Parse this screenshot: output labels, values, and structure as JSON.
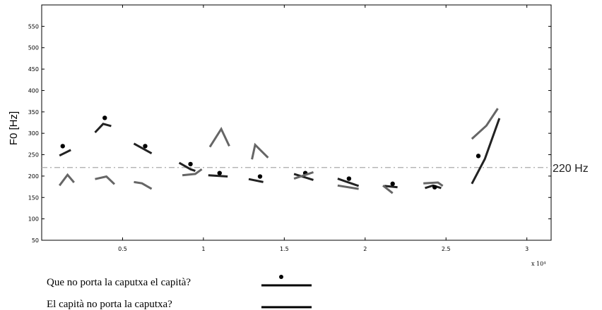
{
  "chart_data": {
    "type": "line",
    "title": "",
    "xlabel": "",
    "ylabel": "F0 [Hz]",
    "x_exponent_label": "x 10⁴",
    "xlim": [
      0,
      3.15
    ],
    "ylim": [
      50,
      600
    ],
    "xticks": [
      0.5,
      1,
      1.5,
      2,
      2.5,
      3
    ],
    "xtick_labels": [
      "0.5",
      "1",
      "1.5",
      "2",
      "2.5",
      "3"
    ],
    "yticks": [
      50,
      100,
      150,
      200,
      250,
      300,
      350,
      400,
      450,
      500,
      550
    ],
    "ytick_labels": [
      "50",
      "100",
      "150",
      "200",
      "250",
      "300",
      "350",
      "400",
      "450",
      "500",
      "550"
    ],
    "grid": false,
    "reference_line": {
      "y": 220,
      "label": "220 Hz",
      "color": "#aaaaaa"
    },
    "series": [
      {
        "name": "Que no porta la caputxa el capità?",
        "color": "#222222",
        "points": [
          [
            0.13,
            270
          ],
          [
            0.39,
            336
          ],
          [
            0.64,
            270
          ],
          [
            0.92,
            228
          ],
          [
            1.1,
            207
          ],
          [
            1.35,
            199
          ],
          [
            1.63,
            207
          ],
          [
            1.9,
            194
          ],
          [
            2.17,
            182
          ],
          [
            2.43,
            174
          ],
          [
            2.7,
            247
          ]
        ],
        "segments": [
          [
            [
              0.11,
              248
            ],
            [
              0.18,
              261
            ]
          ],
          [
            [
              0.33,
              302
            ],
            [
              0.38,
              322
            ],
            [
              0.43,
              317
            ]
          ],
          [
            [
              0.57,
              276
            ],
            [
              0.68,
              253
            ]
          ],
          [
            [
              0.85,
              231
            ],
            [
              0.92,
              216
            ],
            [
              0.95,
              212
            ]
          ],
          [
            [
              1.03,
              202
            ],
            [
              1.15,
              199
            ]
          ],
          [
            [
              1.28,
              193
            ],
            [
              1.37,
              186
            ]
          ],
          [
            [
              1.56,
              205
            ],
            [
              1.68,
              191
            ]
          ],
          [
            [
              1.83,
              194
            ],
            [
              1.96,
              177
            ]
          ],
          [
            [
              2.12,
              177
            ],
            [
              2.2,
              174
            ]
          ],
          [
            [
              2.37,
              172
            ],
            [
              2.42,
              178
            ],
            [
              2.47,
              172
            ]
          ],
          [
            [
              2.66,
              182
            ],
            [
              2.74,
              240
            ],
            [
              2.83,
              335
            ]
          ]
        ]
      },
      {
        "name": "El capità no porta la caputxa?",
        "color": "#666666",
        "segments": [
          [
            [
              0.11,
              178
            ],
            [
              0.16,
              203
            ],
            [
              0.2,
              185
            ]
          ],
          [
            [
              0.33,
              193
            ],
            [
              0.4,
              199
            ],
            [
              0.45,
              181
            ]
          ],
          [
            [
              0.57,
              186
            ],
            [
              0.62,
              183
            ],
            [
              0.68,
              170
            ]
          ],
          [
            [
              0.87,
              202
            ],
            [
              0.95,
              205
            ],
            [
              0.99,
              216
            ]
          ],
          [
            [
              1.04,
              268
            ],
            [
              1.11,
              310
            ],
            [
              1.16,
              270
            ]
          ],
          [
            [
              1.3,
              239
            ],
            [
              1.32,
              273
            ],
            [
              1.4,
              243
            ]
          ],
          [
            [
              1.56,
              194
            ],
            [
              1.68,
              209
            ]
          ],
          [
            [
              1.83,
              178
            ],
            [
              1.96,
              170
            ]
          ],
          [
            [
              2.11,
              178
            ],
            [
              2.17,
              160
            ]
          ],
          [
            [
              2.36,
              183
            ],
            [
              2.45,
              185
            ],
            [
              2.48,
              177
            ]
          ],
          [
            [
              2.66,
              287
            ],
            [
              2.75,
              318
            ],
            [
              2.82,
              358
            ]
          ]
        ]
      }
    ],
    "legend": {
      "position": "below",
      "entries": [
        {
          "label": "Que no porta la caputxa el capità?",
          "has_dot": true
        },
        {
          "label": "El capità no porta la caputxa?",
          "has_dot": false
        }
      ]
    }
  }
}
